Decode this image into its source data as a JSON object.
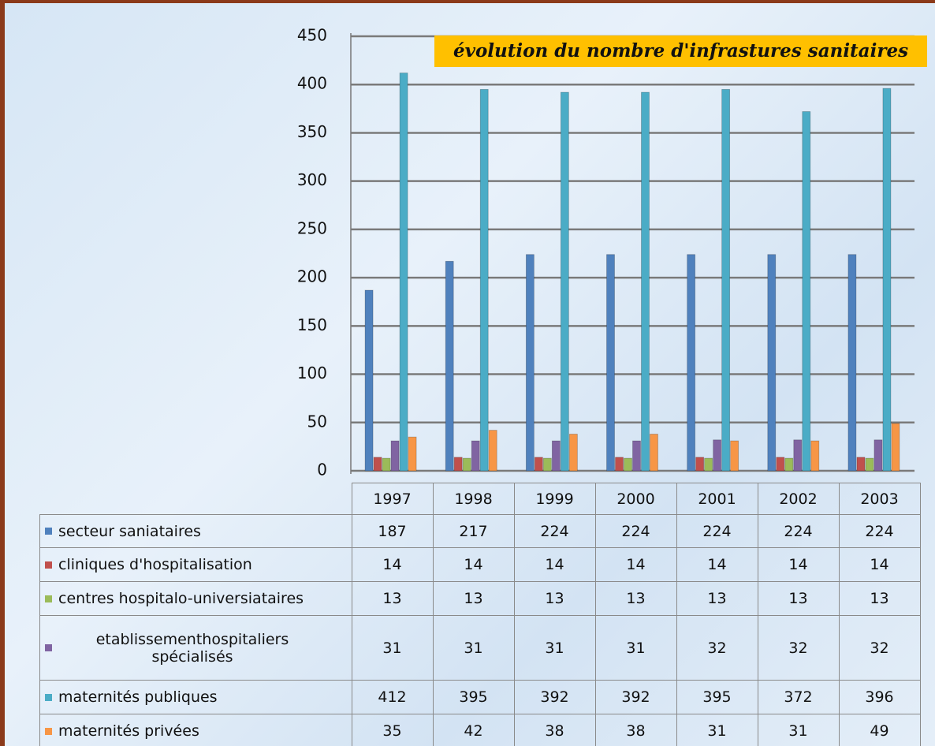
{
  "chart_data": {
    "type": "bar",
    "title": "évolution du nombre d'infrastures sanitaires",
    "categories": [
      "1997",
      "1998",
      "1999",
      "2000",
      "2001",
      "2002",
      "2003"
    ],
    "series": [
      {
        "name": "secteur saniataires",
        "color": "#4f81bd",
        "values": [
          187,
          217,
          224,
          224,
          224,
          224,
          224
        ]
      },
      {
        "name": "cliniques d'hospitalisation",
        "color": "#c0504d",
        "values": [
          14,
          14,
          14,
          14,
          14,
          14,
          14
        ]
      },
      {
        "name": "centres hospitalo-universiataires",
        "color": "#9bbb59",
        "values": [
          13,
          13,
          13,
          13,
          13,
          13,
          13
        ]
      },
      {
        "name": "etablissementhospitaliers spécialisés",
        "color": "#8064a2",
        "values": [
          31,
          31,
          31,
          31,
          32,
          32,
          32
        ]
      },
      {
        "name": "maternités publiques",
        "color": "#4bacc6",
        "values": [
          412,
          395,
          392,
          392,
          395,
          372,
          396
        ]
      },
      {
        "name": "maternités privées",
        "color": "#f79646",
        "values": [
          35,
          42,
          38,
          38,
          31,
          31,
          49
        ]
      }
    ],
    "ylim": [
      0,
      450
    ],
    "yticks": [
      0,
      50,
      100,
      150,
      200,
      250,
      300,
      350,
      400,
      450
    ],
    "grid": true
  }
}
